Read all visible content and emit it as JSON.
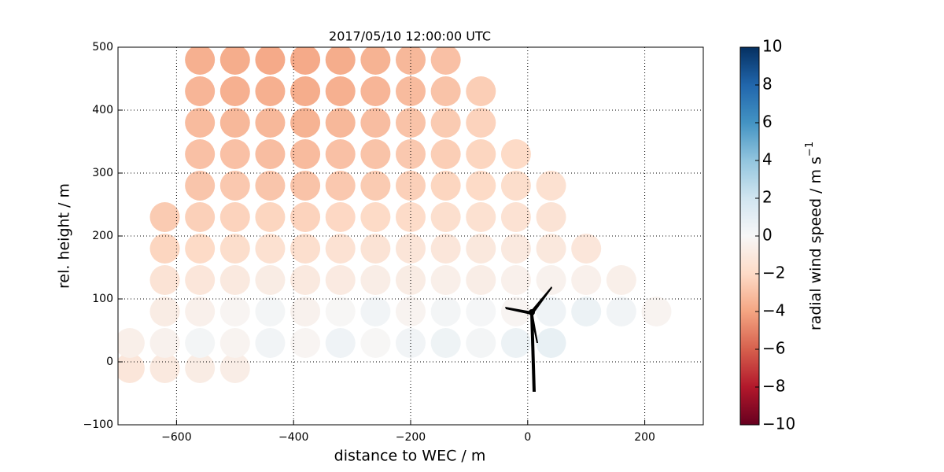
{
  "chart_data": {
    "type": "scatter",
    "title": "2017/05/10 12:00:00 UTC",
    "xlabel": "distance to WEC / m",
    "ylabel": "rel. height / m",
    "xlim": [
      -700,
      300
    ],
    "ylim": [
      -100,
      500
    ],
    "xticks": [
      {
        "value": -600,
        "label": "−600"
      },
      {
        "value": -400,
        "label": "−400"
      },
      {
        "value": -200,
        "label": "−200"
      },
      0,
      200
    ],
    "yticks": [
      {
        "value": -100,
        "label": "−100"
      },
      0,
      100,
      200,
      300,
      400,
      500
    ],
    "grid": true,
    "colorbar_label": "radial wind speed / m s",
    "colorbar_label_sup": "−1",
    "clim": [
      -10,
      10
    ],
    "cticks": [
      {
        "value": -10,
        "label": "−10"
      },
      {
        "value": -8,
        "label": "−8"
      },
      {
        "value": -6,
        "label": "−6"
      },
      {
        "value": -4,
        "label": "−4"
      },
      {
        "value": -2,
        "label": "−2"
      },
      0,
      2,
      4,
      6,
      8,
      10
    ],
    "colormap": [
      "#67001f",
      "#b2182b",
      "#d6604d",
      "#f4a582",
      "#fddbc7",
      "#f7f7f7",
      "#d1e5f0",
      "#92c5de",
      "#4393c3",
      "#2166ac",
      "#053061"
    ],
    "x": [
      -680,
      -620,
      -560,
      -500,
      -680,
      -620,
      -560,
      -500,
      -440,
      -380,
      -320,
      -260,
      -200,
      -140,
      -80,
      -20,
      40,
      -620,
      -560,
      -500,
      -440,
      -380,
      -320,
      -260,
      -200,
      -140,
      -80,
      -20,
      40,
      100,
      160,
      220,
      -620,
      -560,
      -500,
      -440,
      -380,
      -320,
      -260,
      -200,
      -140,
      -80,
      -20,
      40,
      100,
      160,
      -620,
      -560,
      -500,
      -440,
      -380,
      -320,
      -260,
      -200,
      -140,
      -80,
      -20,
      40,
      100,
      -620,
      -560,
      -500,
      -440,
      -380,
      -320,
      -260,
      -200,
      -140,
      -80,
      -20,
      40,
      -560,
      -500,
      -440,
      -380,
      -320,
      -260,
      -200,
      -140,
      -80,
      -20,
      40,
      -560,
      -500,
      -440,
      -380,
      -320,
      -260,
      -200,
      -140,
      -80,
      -20,
      -560,
      -500,
      -440,
      -380,
      -320,
      -260,
      -200,
      -140,
      -80,
      -560,
      -500,
      -440,
      -380,
      -320,
      -260,
      -200,
      -140,
      -80,
      -560,
      -500,
      -440,
      -380,
      -320,
      -260,
      -200,
      -140
    ],
    "y": [
      -10,
      -10,
      -10,
      -10,
      30,
      30,
      30,
      30,
      30,
      30,
      30,
      30,
      30,
      30,
      30,
      30,
      30,
      80,
      80,
      80,
      80,
      80,
      80,
      80,
      80,
      80,
      80,
      80,
      80,
      80,
      80,
      80,
      130,
      130,
      130,
      130,
      130,
      130,
      130,
      130,
      130,
      130,
      130,
      130,
      130,
      130,
      180,
      180,
      180,
      180,
      180,
      180,
      180,
      180,
      180,
      180,
      180,
      180,
      180,
      230,
      230,
      230,
      230,
      230,
      230,
      230,
      230,
      230,
      230,
      230,
      230,
      280,
      280,
      280,
      280,
      280,
      280,
      280,
      280,
      280,
      280,
      280,
      330,
      330,
      330,
      330,
      330,
      330,
      330,
      330,
      330,
      330,
      380,
      380,
      380,
      380,
      380,
      380,
      380,
      380,
      380,
      430,
      430,
      430,
      430,
      430,
      430,
      430,
      430,
      430,
      480,
      480,
      480,
      480,
      480,
      480,
      480,
      480
    ],
    "values": [
      -1.2,
      -1.0,
      -0.8,
      -0.7,
      -0.6,
      -0.4,
      0.2,
      -0.3,
      0.3,
      -0.2,
      0.4,
      -0.1,
      0.3,
      0.5,
      0.2,
      0.6,
      0.8,
      -0.8,
      -0.5,
      -0.2,
      0.2,
      -0.4,
      -0.1,
      0.3,
      -0.3,
      0.2,
      0.1,
      -0.2,
      0.4,
      0.6,
      0.3,
      -0.3,
      -1.4,
      -1.2,
      -1.0,
      -0.8,
      -1.0,
      -0.9,
      -0.7,
      -0.8,
      -0.6,
      -0.7,
      -0.5,
      -0.4,
      -0.5,
      -0.6,
      -2.2,
      -2.0,
      -1.8,
      -1.6,
      -1.7,
      -1.5,
      -1.4,
      -1.3,
      -1.2,
      -1.1,
      -1.0,
      -1.1,
      -1.2,
      -2.6,
      -2.4,
      -2.3,
      -2.2,
      -2.3,
      -2.1,
      -2.0,
      -1.9,
      -1.7,
      -1.6,
      -1.5,
      -1.4,
      -2.8,
      -2.7,
      -2.8,
      -2.9,
      -2.7,
      -2.6,
      -2.4,
      -2.2,
      -2.0,
      -1.8,
      -1.6,
      -3.0,
      -3.0,
      -3.1,
      -3.2,
      -3.0,
      -2.9,
      -2.7,
      -2.5,
      -2.2,
      -2.0,
      -3.2,
      -3.3,
      -3.3,
      -3.5,
      -3.3,
      -3.1,
      -2.9,
      -2.6,
      -2.3,
      -3.4,
      -3.6,
      -3.6,
      -3.7,
      -3.6,
      -3.4,
      -3.2,
      -2.9,
      -2.5,
      -3.6,
      -3.7,
      -3.8,
      -3.8,
      -3.7,
      -3.5,
      -3.3,
      -3.0
    ]
  }
}
